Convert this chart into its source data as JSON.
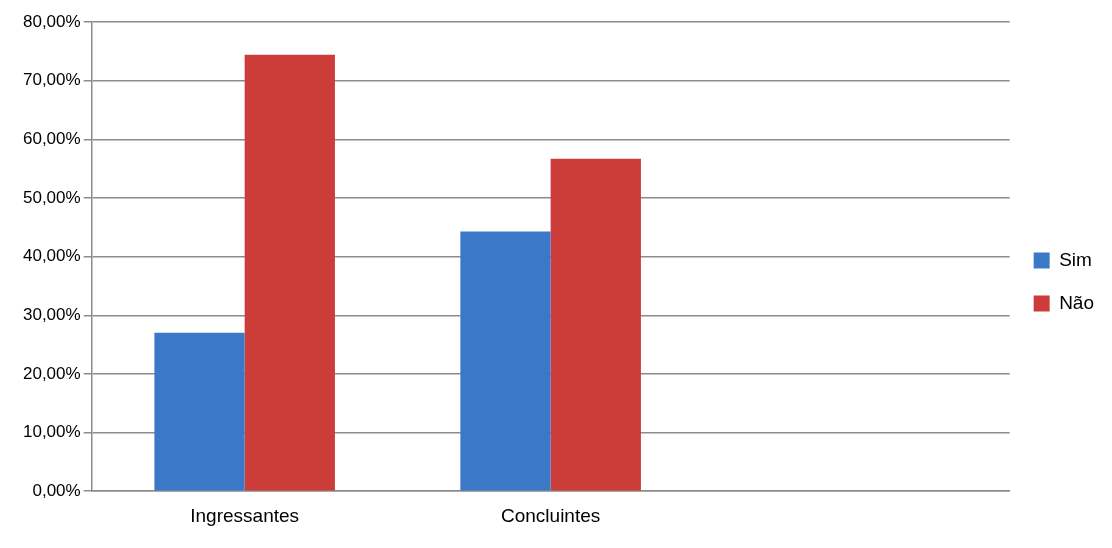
{
  "chart_data": {
    "type": "bar",
    "categories": [
      "Ingressantes",
      "Concluintes",
      null
    ],
    "series": [
      {
        "name": "Sim",
        "color": "#3c78c8",
        "values": [
          27.0,
          44.3,
          null
        ]
      },
      {
        "name": "Não",
        "color": "#cc3c38",
        "values": [
          74.4,
          56.7,
          null
        ]
      }
    ],
    "ylim": [
      0,
      80
    ],
    "yticks": [
      {
        "value": 0,
        "label": "0,00%"
      },
      {
        "value": 10,
        "label": "10,00%"
      },
      {
        "value": 20,
        "label": "20,00%"
      },
      {
        "value": 30,
        "label": "30,00%"
      },
      {
        "value": 40,
        "label": "40,00%"
      },
      {
        "value": 50,
        "label": "50,00%"
      },
      {
        "value": 60,
        "label": "60,00%"
      },
      {
        "value": 70,
        "label": "70,00%"
      },
      {
        "value": 80,
        "label": "80,00%"
      }
    ],
    "grid": "y",
    "legend": "right"
  }
}
